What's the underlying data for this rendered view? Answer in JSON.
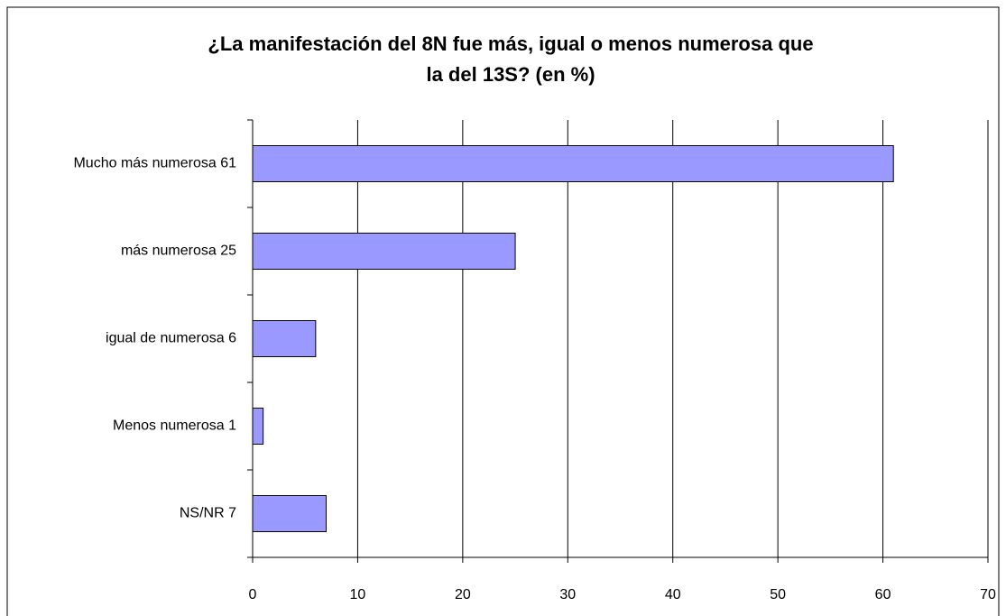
{
  "chart_data": {
    "type": "hbar",
    "title": [
      "¿La manifestación del 8N fue más, igual o menos numerosa que",
      "la del 13S? (en %)"
    ],
    "categories": [
      "Mucho más numerosa  61",
      "más numerosa  25",
      "igual de numerosa  6",
      "Menos numerosa  1",
      "NS/NR  7"
    ],
    "values": [
      61,
      25,
      6,
      1,
      7
    ],
    "color": "#9999ff",
    "xlim": [
      0,
      70
    ],
    "xticks": [
      0,
      10,
      20,
      30,
      40,
      50,
      60,
      70
    ],
    "grid": true
  }
}
